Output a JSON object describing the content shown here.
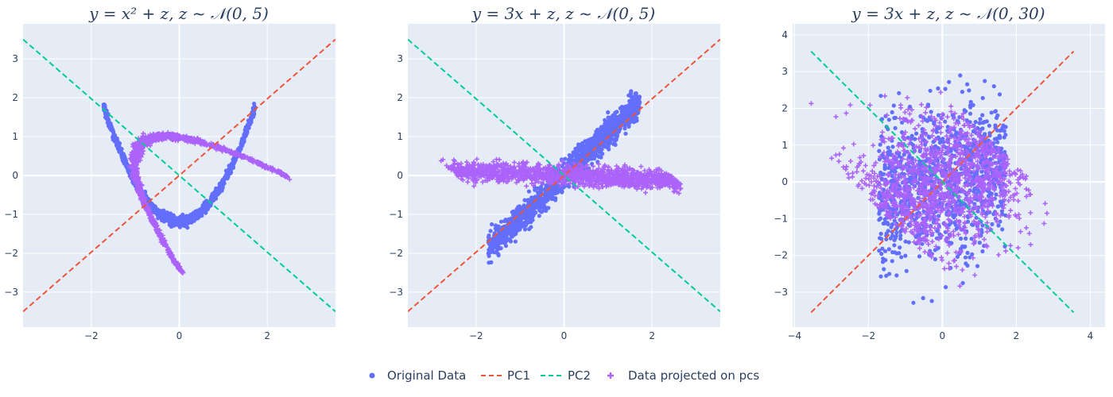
{
  "colors": {
    "background": "#e5ecf6",
    "grid": "#ffffff",
    "original": "#636efa",
    "pc1": "#ef553b",
    "pc2": "#00cc96",
    "projected": "#ab63fa",
    "text": "#2a3f5f"
  },
  "legend": {
    "placement": "bottom-center",
    "items": [
      {
        "label": "Original Data",
        "symbol": "dot",
        "color_key": "original"
      },
      {
        "label": "PC1",
        "symbol": "dash",
        "color_key": "pc1"
      },
      {
        "label": "PC2",
        "symbol": "dash",
        "color_key": "pc2"
      },
      {
        "label": "Data projected on pcs",
        "symbol": "cross",
        "color_key": "projected"
      }
    ]
  },
  "chart_data": [
    {
      "type": "scatter",
      "title": "y = x² + z, z ~ 𝒩(0, 5)",
      "generator": "quadratic",
      "xlim": [
        -3.55,
        3.55
      ],
      "ylim": [
        -3.9,
        3.9
      ],
      "xticks": [
        -2,
        0,
        2
      ],
      "yticks": [
        -3,
        -2,
        -1,
        0,
        1,
        2,
        3
      ],
      "pc1": {
        "x": [
          -3.55,
          3.55
        ],
        "y": [
          -3.5,
          3.5
        ]
      },
      "pc2": {
        "x": [
          -3.55,
          3.55
        ],
        "y": [
          3.5,
          -3.5
        ]
      },
      "grid": true
    },
    {
      "type": "scatter",
      "title": "y = 3x + z, z ~ 𝒩(0, 5)",
      "generator": "linear",
      "xlim": [
        -3.55,
        3.55
      ],
      "ylim": [
        -3.9,
        3.9
      ],
      "xticks": [
        -2,
        0,
        2
      ],
      "yticks": [
        -3,
        -2,
        -1,
        0,
        1,
        2,
        3
      ],
      "pc1": {
        "x": [
          -3.55,
          3.55
        ],
        "y": [
          -3.5,
          3.5
        ]
      },
      "pc2": {
        "x": [
          -3.55,
          3.55
        ],
        "y": [
          3.5,
          -3.5
        ]
      },
      "grid": true
    },
    {
      "type": "scatter",
      "title": "y = 3x + z, z ~ 𝒩(0, 30)",
      "generator": "noisy",
      "xlim": [
        -4.05,
        4.4
      ],
      "ylim": [
        -3.95,
        4.3
      ],
      "xticks": [
        -4,
        -2,
        0,
        2,
        4
      ],
      "yticks": [
        -3,
        -2,
        -1,
        0,
        1,
        2,
        3,
        4
      ],
      "pc1": {
        "x": [
          -3.55,
          3.55
        ],
        "y": [
          -3.55,
          3.55
        ]
      },
      "pc2": {
        "x": [
          -3.55,
          3.55
        ],
        "y": [
          3.55,
          -3.55
        ]
      },
      "grid": true
    }
  ]
}
